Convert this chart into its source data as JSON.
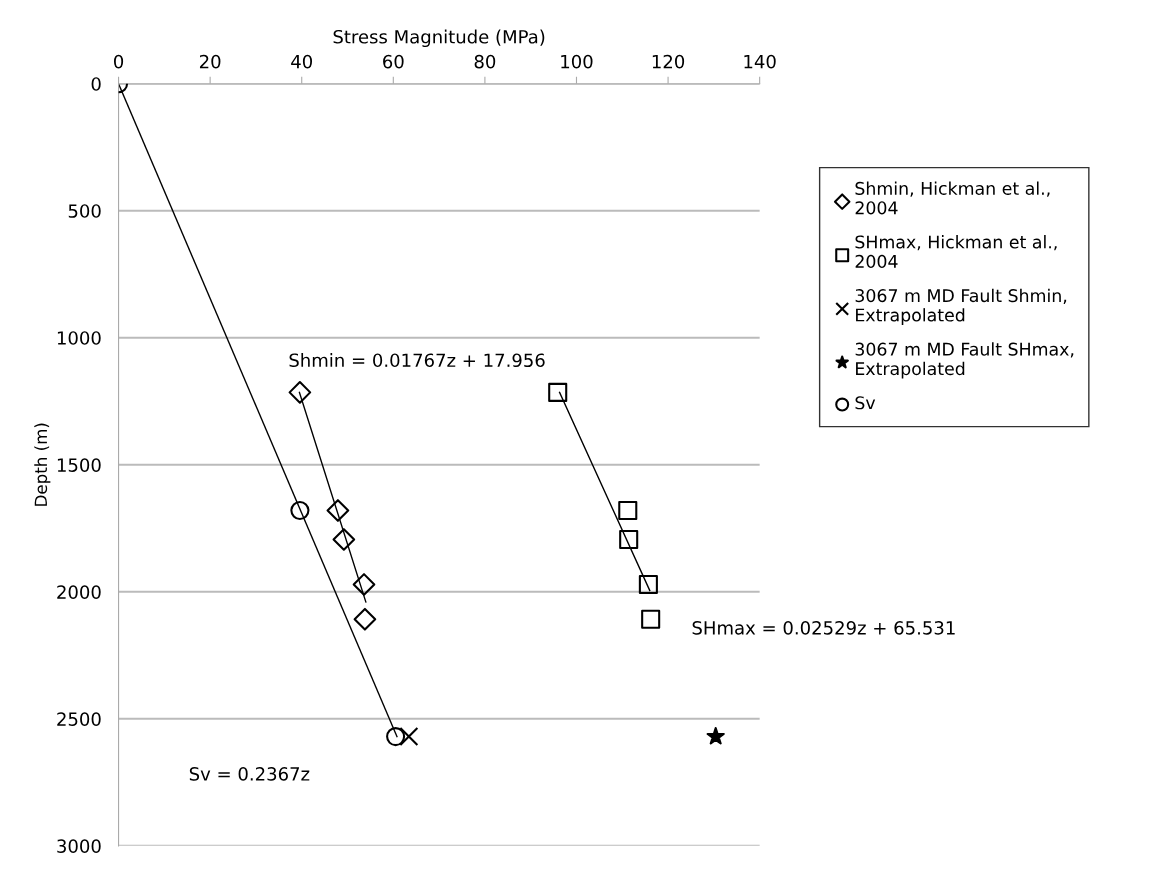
{
  "chart_data": {
    "type": "scatter",
    "xlabel": "Stress Magnitude (MPa)",
    "ylabel": "Depth (m)",
    "xlim": [
      0,
      140
    ],
    "xticks": [
      0,
      20,
      40,
      60,
      80,
      100,
      120,
      140
    ],
    "ylim": [
      3000,
      0
    ],
    "yticks": [
      0,
      500,
      1000,
      1500,
      2000,
      2500,
      3000
    ],
    "grid": "y",
    "legend": "right",
    "series": [
      {
        "name": "Shmin, Hickman et al., 2004",
        "color": "#000000",
        "marker": "diamond",
        "x": [
          39.6,
          47.9,
          49.2,
          53.6,
          53.8
        ],
        "values": [
          1215,
          1680,
          1794,
          1971,
          2108
        ]
      },
      {
        "name": "SHmax, Hickman et al., 2004",
        "color": "#000000",
        "marker": "square",
        "x": [
          95.9,
          111.2,
          111.4,
          115.7,
          116.2
        ],
        "values": [
          1215,
          1680,
          1794,
          1971,
          2108
        ]
      },
      {
        "name": "3067 m MD Fault Shmin, Extrapolated",
        "color": "#000000",
        "marker": "cross",
        "x": [
          63.4
        ],
        "values": [
          2570
        ]
      },
      {
        "name": "3067 m MD Fault SHmax, Extrapolated",
        "color": "#000000",
        "marker": "star",
        "x": [
          130.4
        ],
        "values": [
          2570
        ]
      },
      {
        "name": "Sv",
        "color": "#000000",
        "marker": "circle",
        "x": [
          0,
          39.6,
          60.5
        ],
        "values": [
          0,
          1680,
          2570
        ]
      },
      {
        "type": "line",
        "color": "#000000",
        "marker": "none",
        "x": [
          39.5,
          54.0
        ],
        "values": [
          1215,
          2040
        ]
      },
      {
        "type": "line",
        "color": "#000000",
        "marker": "none",
        "x": [
          96.3,
          116.0
        ],
        "values": [
          1215,
          1995
        ]
      },
      {
        "type": "line",
        "color": "#000000",
        "marker": "none",
        "x": [
          0,
          60.8
        ],
        "values": [
          0,
          2570
        ]
      }
    ],
    "annotations": [
      "Shmin = 0.01767z + 17.956",
      "SHmax = 0.02529z + 65.531",
      "Sv = 0.2367z"
    ]
  }
}
